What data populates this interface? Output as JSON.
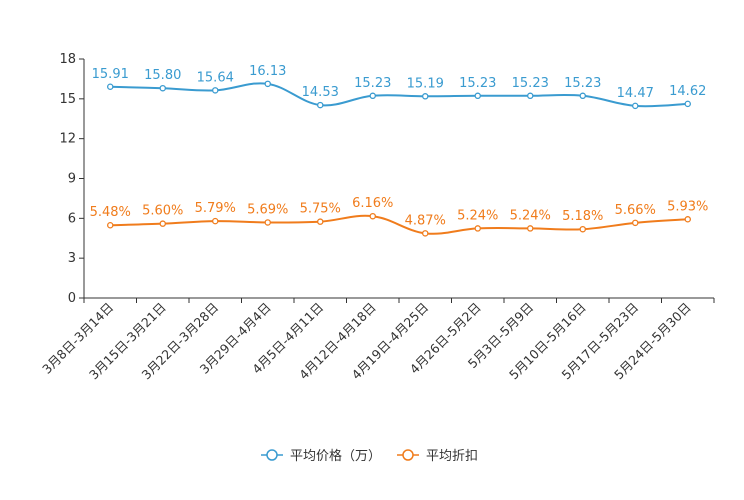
{
  "chart_data": {
    "type": "line",
    "categories": [
      "3月8日-3月14日",
      "3月15日-3月21日",
      "3月22日-3月28日",
      "3月29日-4月4日",
      "4月5日-4月11日",
      "4月12日-4月18日",
      "4月19日-4月25日",
      "4月26日-5月2日",
      "5月3日-5月9日",
      "5月10日-5月16日",
      "5月17日-5月23日",
      "5月24日-5月30日"
    ],
    "series": [
      {
        "name": "平均价格（万）",
        "color": "#3a9bd0",
        "values": [
          15.91,
          15.8,
          15.64,
          16.13,
          14.53,
          15.23,
          15.19,
          15.23,
          15.23,
          15.23,
          14.47,
          14.62
        ],
        "labels": [
          "15.91",
          "15.80",
          "15.64",
          "16.13",
          "14.53",
          "15.23",
          "15.19",
          "15.23",
          "15.23",
          "15.23",
          "14.47",
          "14.62"
        ]
      },
      {
        "name": "平均折扣",
        "color": "#f07c1c",
        "values": [
          5.48,
          5.6,
          5.79,
          5.69,
          5.75,
          6.16,
          4.87,
          5.24,
          5.24,
          5.18,
          5.66,
          5.93
        ],
        "labels": [
          "5.48%",
          "5.60%",
          "5.79%",
          "5.69%",
          "5.75%",
          "6.16%",
          "4.87%",
          "5.24%",
          "5.24%",
          "5.18%",
          "5.66%",
          "5.93%"
        ]
      }
    ],
    "yticks": [
      "0",
      "3",
      "6",
      "9",
      "12",
      "15",
      "18"
    ],
    "ylim": [
      0,
      18
    ],
    "legend_position": "bottom-center"
  }
}
